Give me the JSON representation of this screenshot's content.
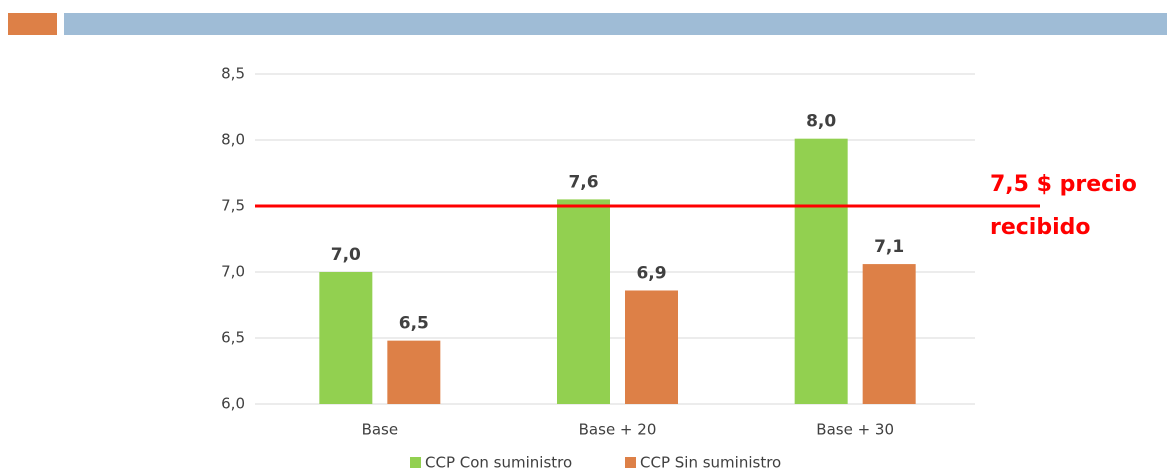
{
  "chart_data": {
    "type": "bar",
    "categories": [
      "Base",
      "Base + 20",
      "Base + 30"
    ],
    "series": [
      {
        "name": "CCP Con suministro",
        "color": "#92d050",
        "values": [
          7.0,
          7.55,
          8.01
        ],
        "value_labels": [
          "7,0",
          "7,6",
          "8,0"
        ]
      },
      {
        "name": "CCP Sin suministro",
        "color": "#dd8047",
        "values": [
          6.48,
          6.86,
          7.06
        ],
        "value_labels": [
          "6,5",
          "6,9",
          "7,1"
        ]
      }
    ],
    "ylim": [
      6.0,
      8.5
    ],
    "yticks": [
      {
        "value": 6.0,
        "label": "6,0"
      },
      {
        "value": 6.5,
        "label": "6,5"
      },
      {
        "value": 7.0,
        "label": "7,0"
      },
      {
        "value": 7.5,
        "label": "7,5"
      },
      {
        "value": 8.0,
        "label": "8,0"
      },
      {
        "value": 8.5,
        "label": "8,5"
      }
    ],
    "grid": true,
    "legend": "bottom",
    "reference_line": {
      "value": 7.5,
      "color": "#ff0000",
      "label_lines": [
        "7,5 $ precio",
        "recibido"
      ]
    }
  }
}
